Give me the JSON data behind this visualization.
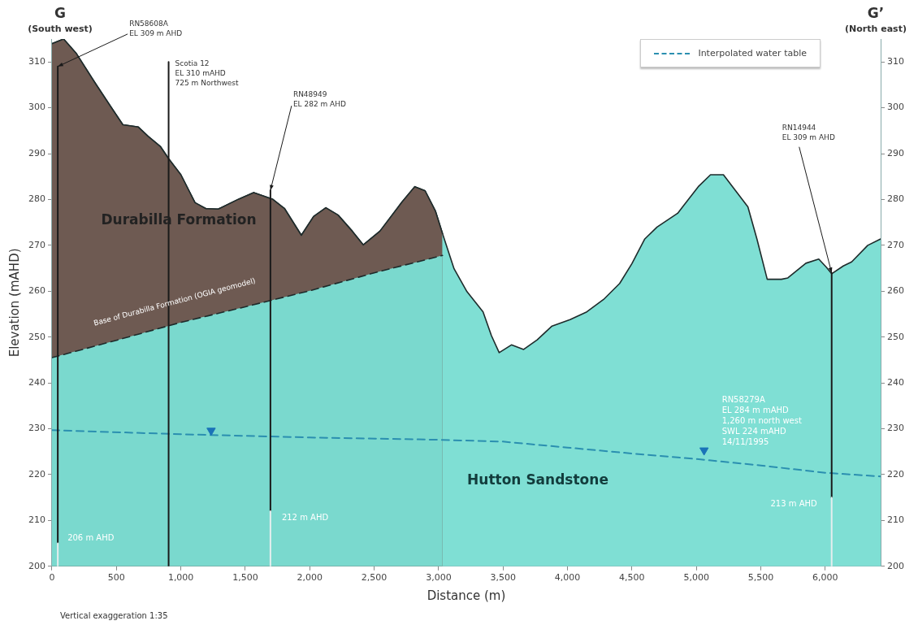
{
  "chart_data": {
    "type": "area",
    "xlabel": "Distance (m)",
    "ylabel": "Elevation (mAHD)",
    "xlim": [
      0,
      6430
    ],
    "xticks": [
      0,
      500,
      {
        "value": 1000,
        "label": "1,000"
      },
      {
        "value": 1500,
        "label": "1,500"
      },
      {
        "value": 2000,
        "label": "2,000"
      },
      {
        "value": 2500,
        "label": "2,500"
      },
      {
        "value": 3000,
        "label": "3,000"
      },
      {
        "value": 3500,
        "label": "3,500"
      },
      {
        "value": 4000,
        "label": "4,000"
      },
      {
        "value": 4500,
        "label": "4,500"
      },
      {
        "value": 5000,
        "label": "5,000"
      },
      {
        "value": 5500,
        "label": "5,500"
      },
      {
        "value": 6000,
        "label": "6,000"
      }
    ],
    "ylim": [
      200,
      315
    ],
    "yticks": [
      200,
      210,
      220,
      230,
      240,
      250,
      260,
      270,
      280,
      290,
      300,
      310
    ],
    "y2lim": [
      200,
      315
    ],
    "y2ticks": [
      200,
      210,
      220,
      230,
      240,
      250,
      260,
      270,
      280,
      290,
      300,
      310
    ],
    "grid": false,
    "legend": "top right",
    "series": [
      {
        "color": "#7fdfd4",
        "x": [
          0,
          90,
          190,
          330,
          455,
          550,
          670,
          745,
          840,
          905,
          1000,
          1110,
          1195,
          1290,
          1450,
          1565,
          1710,
          1805,
          1935,
          2030,
          2125,
          2220,
          2330,
          2415,
          2545,
          2715,
          2815,
          2895,
          2975,
          3030,
          3120,
          3220,
          3345,
          3410,
          3470,
          3565,
          3660,
          3765,
          3880,
          4020,
          4150,
          4280,
          4405,
          4500,
          4600,
          4695,
          4855,
          5015,
          5110,
          5210,
          5305,
          5400,
          5470,
          5550,
          5660,
          5710,
          5850,
          5950,
          6010,
          6050,
          6140,
          6205,
          6330,
          6430
        ],
        "values": [
          314,
          315,
          311.8,
          305.6,
          300.3,
          296.3,
          295.8,
          293.8,
          291.6,
          288.9,
          285.4,
          279.3,
          278,
          277.9,
          280.1,
          281.5,
          280.1,
          278,
          272.2,
          276.3,
          278.2,
          276.6,
          273.1,
          270.1,
          273.1,
          279.4,
          282.8,
          281.9,
          277.5,
          272.6,
          264.9,
          259.9,
          255.5,
          250.3,
          246.6,
          248.3,
          247.3,
          249.4,
          252.4,
          253.8,
          255.5,
          258.2,
          261.7,
          266,
          271.4,
          274,
          277,
          282.8,
          285.4,
          285.4,
          281.9,
          278.4,
          271.4,
          262.6,
          262.6,
          262.9,
          266.1,
          267,
          265.2,
          263.8,
          265.5,
          266.4,
          270,
          271.4
        ]
      },
      {
        "type": "area",
        "color": "#6e5a52",
        "x": [
          0,
          90,
          190,
          330,
          455,
          550,
          670,
          745,
          840,
          905,
          1000,
          1110,
          1195,
          1290,
          1450,
          1565,
          1710,
          1805,
          1935,
          2030,
          2125,
          2220,
          2330,
          2415,
          2545,
          2715,
          2815,
          2895,
          2975,
          3030
        ],
        "values": [
          314,
          315,
          311.8,
          305.6,
          300.3,
          296.3,
          295.8,
          293.8,
          291.6,
          288.9,
          285.4,
          279.3,
          278,
          277.9,
          280.1,
          281.5,
          280.1,
          278,
          272.2,
          276.3,
          278.2,
          276.6,
          273.1,
          270.1,
          273.1,
          279.4,
          282.8,
          281.9,
          277.5,
          272.6
        ]
      },
      {
        "type": "area",
        "color": "#7ad9ce",
        "line_style": "dashed",
        "x": [
          0,
          500,
          1000,
          1500,
          2000,
          2500,
          3030
        ],
        "values": [
          245.5,
          249.3,
          253.2,
          256.6,
          260.1,
          264,
          267.8
        ]
      },
      {
        "type": "line",
        "name": "Interpolated water table",
        "color": "#2b8fb0",
        "line_style": "dashed",
        "x": [
          0,
          1000,
          2000,
          3000,
          3500,
          4000,
          4500,
          5000,
          5500,
          6000,
          6430
        ],
        "values": [
          229.7,
          228.8,
          228.1,
          227.6,
          227.2,
          225.9,
          224.6,
          223.4,
          222,
          220.4,
          219.6
        ]
      },
      {
        "type": "line",
        "color": "#1a1a1a",
        "x": [
          45,
          45
        ],
        "values": [
          309,
          205
        ]
      },
      {
        "type": "line",
        "color": "#1a1a1a",
        "x": [
          905,
          905
        ],
        "values": [
          310,
          200
        ]
      },
      {
        "type": "line",
        "color": "#1a1a1a",
        "x": [
          1695,
          1695
        ],
        "values": [
          282,
          212
        ]
      },
      {
        "type": "line",
        "color": "#1a1a1a",
        "x": [
          6050,
          6050
        ],
        "values": [
          264,
          215
        ]
      },
      {
        "type": "line",
        "color": "#e6eeee",
        "x": [
          45,
          45
        ],
        "values": [
          205,
          200
        ]
      },
      {
        "type": "line",
        "color": "#e6eeee",
        "x": [
          1695,
          1695
        ],
        "values": [
          212,
          200
        ]
      },
      {
        "type": "line",
        "color": "#e6eeee",
        "x": [
          6050,
          6050
        ],
        "values": [
          215,
          200
        ]
      },
      {
        "type": "scatter",
        "color": "#1a73b8",
        "marker": "triangle",
        "x": [
          1235,
          5060
        ],
        "values": [
          229.6,
          225.3
        ]
      }
    ],
    "annotations": [
      "G",
      "(South west)",
      "G’",
      "(North east)",
      "Vertical exaggeration 1:35",
      {
        "text": "RN58608A\nEL 309 m AHD",
        "x": 45,
        "y": 309
      },
      {
        "text": "Scotia 12\nEL 310 mAHD\n725 m Northwest",
        "x": 905,
        "y": 310
      },
      {
        "text": "RN48949\nEL 282 m AHD",
        "x": 1695,
        "y": 282
      },
      {
        "text": "RN14944\nEL 309 m AHD",
        "x": 6050,
        "y": 264
      },
      {
        "text": "RN58279A\nEL 284 m mAHD\n1,260 m north west\nSWL 224 mAHD\n14/11/1995",
        "x": 5060,
        "y": 225.3
      },
      {
        "text": "206 m AHD",
        "x": 45,
        "y": 205
      },
      {
        "text": "212 m AHD",
        "x": 1695,
        "y": 212
      },
      {
        "text": "213 m AHD",
        "x": 6050,
        "y": 215
      },
      "Durabilla Formation",
      "Hutton Sandstone",
      "Base of Durabilla Formation (OGIA geomodel)"
    ]
  }
}
